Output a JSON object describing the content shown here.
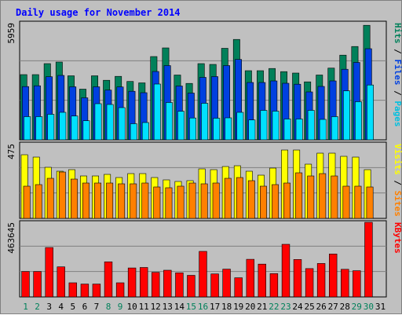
{
  "chart_data": {
    "type": "bar",
    "title": "Daily usage for November 2014",
    "days": [
      "1",
      "2",
      "3",
      "4",
      "5",
      "6",
      "7",
      "8",
      "9",
      "10",
      "11",
      "12",
      "13",
      "14",
      "15",
      "16",
      "17",
      "18",
      "19",
      "20",
      "21",
      "22",
      "23",
      "24",
      "25",
      "26",
      "27",
      "28",
      "29",
      "30",
      "31"
    ],
    "weekend_days": [
      "1",
      "2",
      "8",
      "9",
      "15",
      "16",
      "22",
      "23",
      "29",
      "30"
    ],
    "panels": [
      {
        "name": "hits-files-pages",
        "max_label": "5959",
        "ymax": 5959,
        "side_labels": [
          {
            "text": "Pages",
            "color": "#00c0e0"
          },
          {
            "text": " / ",
            "color": "#000000"
          },
          {
            "text": "Files",
            "color": "#0040e0"
          },
          {
            "text": " / ",
            "color": "#000000"
          },
          {
            "text": "Hits",
            "color": "#00805a"
          }
        ],
        "series": [
          {
            "name": "Hits",
            "color": "#00805a",
            "values": [
              3320,
              3320,
              3880,
              3960,
              3260,
              2580,
              3260,
              3030,
              3230,
              2970,
              2900,
              4240,
              4680,
              3300,
              2870,
              3880,
              3840,
              4660,
              5110,
              3520,
              3520,
              3630,
              3470,
              3400,
              2950,
              3300,
              3650,
              4310,
              4750,
              5830,
              0
            ]
          },
          {
            "name": "Files",
            "color": "#0040e0",
            "values": [
              2710,
              2750,
              3210,
              3280,
              2700,
              2140,
              2700,
              2530,
              2690,
              2470,
              2400,
              3480,
              3780,
              2740,
              2380,
              3180,
              3220,
              3780,
              4090,
              2920,
              2920,
              3000,
              2880,
              2830,
              2440,
              2720,
              3000,
              3590,
              3940,
              4640,
              0
            ]
          },
          {
            "name": "Pages",
            "color": "#00e0ff",
            "values": [
              1180,
              1180,
              1300,
              1400,
              1210,
              970,
              1840,
              1800,
              1640,
              820,
              880,
              2840,
              1900,
              1450,
              1110,
              1860,
              1100,
              1120,
              1400,
              1010,
              1500,
              1460,
              1060,
              1060,
              1500,
              1040,
              1180,
              2490,
              1940,
              2790,
              0
            ]
          }
        ]
      },
      {
        "name": "visits-sites",
        "max_label": "475",
        "ymax": 475,
        "side_labels": [
          {
            "text": "Sites",
            "color": "#ff8000"
          },
          {
            "text": " / ",
            "color": "#000000"
          },
          {
            "text": "Visits",
            "color": "#ffff00"
          }
        ],
        "series": [
          {
            "name": "Visits",
            "color": "#ffff00",
            "values": [
              405,
              390,
              325,
              300,
              310,
              270,
              270,
              280,
              260,
              285,
              285,
              260,
              245,
              235,
              240,
              315,
              310,
              330,
              335,
              300,
              275,
              320,
              435,
              435,
              345,
              415,
              415,
              395,
              390,
              310,
              0
            ]
          },
          {
            "name": "Sites",
            "color": "#ff8000",
            "values": [
              205,
              215,
              255,
              295,
              250,
              225,
              225,
              225,
              220,
              220,
              225,
              200,
              195,
              205,
              225,
              220,
              225,
              255,
              260,
              240,
              205,
              215,
              225,
              290,
              270,
              285,
              270,
              205,
              205,
              200,
              0
            ]
          }
        ]
      },
      {
        "name": "kbytes",
        "max_label": "463645",
        "ymax": 463645,
        "side_labels": [
          {
            "text": "KBytes",
            "color": "#ff0000"
          }
        ],
        "series": [
          {
            "name": "KBytes",
            "color": "#ff0000",
            "values": [
              158000,
              158000,
              307000,
              187000,
              88000,
              80000,
              80000,
              218000,
              88000,
              180000,
              183000,
              153000,
              166000,
              150000,
              134000,
              283000,
              143000,
              173000,
              119000,
              234000,
              204000,
              145000,
              327000,
              233000,
              176000,
              208000,
              267000,
              172000,
              163000,
              463645,
              0
            ]
          }
        ]
      }
    ]
  }
}
